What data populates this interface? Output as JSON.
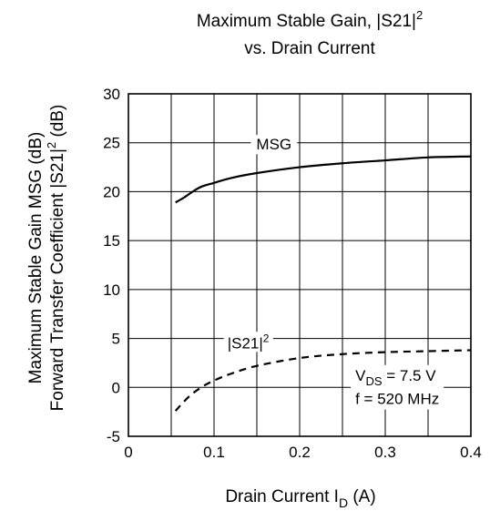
{
  "chart_data": {
    "type": "line",
    "title_line1": "Maximum Stable Gain, |S21|",
    "title_sup": "2",
    "title_line2": "vs. Drain Current",
    "xlabel_main": "Drain Current   I",
    "xlabel_sub": "D",
    "xlabel_unit": "(A)",
    "ylabel_line1": "Maximum Stable Gain   MSG  (dB)",
    "ylabel_line2_main": "Forward Transfer Coefficient   |S21|",
    "ylabel_line2_sup": "2",
    "ylabel_line2_unit": "(dB)",
    "xlim": [
      0,
      0.4
    ],
    "ylim": [
      -5,
      30
    ],
    "x_ticks": [
      0,
      0.1,
      0.2,
      0.3,
      0.4
    ],
    "x_tick_labels": [
      "0",
      "0.1",
      "0.2",
      "0.3",
      "0.4"
    ],
    "y_ticks": [
      -5,
      0,
      5,
      10,
      15,
      20,
      25,
      30
    ],
    "y_tick_labels": [
      "-5",
      "0",
      "5",
      "10",
      "15",
      "20",
      "25",
      "30"
    ],
    "grid_x": [
      0.05,
      0.1,
      0.15,
      0.2,
      0.25,
      0.3,
      0.35
    ],
    "grid_y": [
      0,
      5,
      10,
      15,
      20,
      25
    ],
    "series": [
      {
        "name": "MSG",
        "style": "solid",
        "x": [
          0.055,
          0.065,
          0.075,
          0.085,
          0.1,
          0.12,
          0.15,
          0.2,
          0.25,
          0.3,
          0.35,
          0.4
        ],
        "y": [
          18.9,
          19.4,
          20.0,
          20.5,
          20.9,
          21.4,
          21.9,
          22.5,
          22.9,
          23.2,
          23.5,
          23.6
        ]
      },
      {
        "name": "|S21|",
        "name_sup": "2",
        "style": "dashed",
        "x": [
          0.055,
          0.07,
          0.085,
          0.1,
          0.12,
          0.15,
          0.2,
          0.25,
          0.3,
          0.35,
          0.4
        ],
        "y": [
          -2.4,
          -1.0,
          0.0,
          0.7,
          1.4,
          2.2,
          3.0,
          3.4,
          3.6,
          3.7,
          3.8
        ]
      }
    ],
    "annotation": {
      "vds_main": "V",
      "vds_sub": "DS",
      "vds_value": " = 7.5 V",
      "freq": "f = 520 MHz"
    },
    "label_positions": {
      "MSG": [
        0.17,
        24.3
      ],
      "S21": [
        0.14,
        4.0
      ],
      "conditions_vds": [
        0.265,
        0.7
      ],
      "conditions_freq": [
        0.265,
        -1.7
      ]
    }
  }
}
